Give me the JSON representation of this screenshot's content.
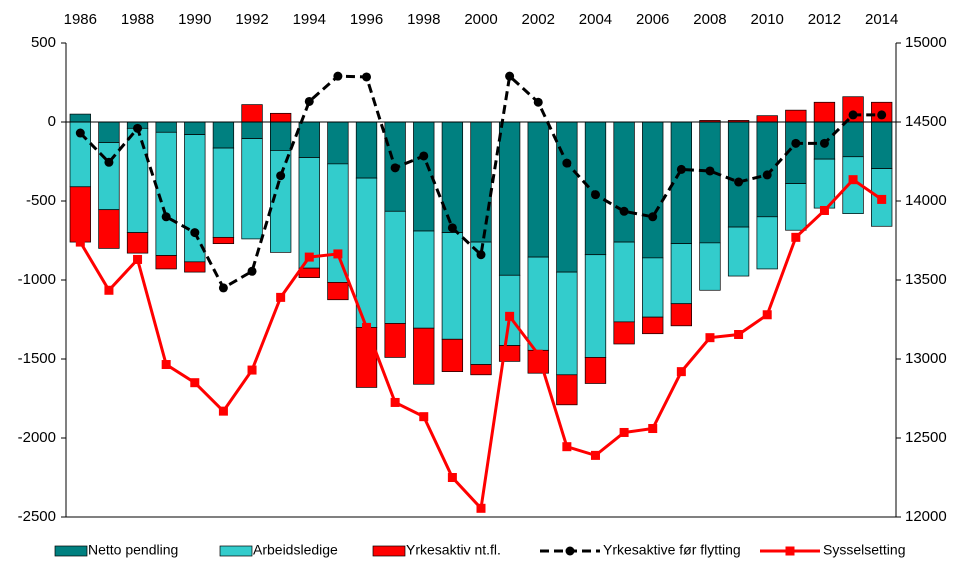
{
  "chart_data": {
    "type": "combo",
    "categories": [
      1986,
      null,
      1988,
      null,
      1990,
      null,
      1992,
      null,
      1994,
      null,
      1996,
      null,
      1998,
      null,
      2000,
      null,
      2002,
      null,
      2004,
      null,
      2006,
      null,
      2008,
      null,
      2010,
      null,
      2012,
      null,
      2014
    ],
    "ylim": [
      -2500,
      500
    ],
    "yticks": [
      -2500,
      -2000,
      -1500,
      -1000,
      -500,
      0,
      500
    ],
    "y2lim": [
      12000,
      15000
    ],
    "y2ticks": [
      12000,
      12500,
      13000,
      13500,
      14000,
      14500,
      15000
    ],
    "legend": "bottom",
    "series": [
      {
        "name": "Netto pendling",
        "kind": "bar",
        "color": "#008080",
        "values": [
          50,
          -130,
          -40,
          -65,
          -80,
          -165,
          -105,
          -180,
          -225,
          -265,
          -355,
          -565,
          -690,
          -700,
          -760,
          -970,
          -855,
          -950,
          -840,
          -760,
          -860,
          -770,
          -765,
          -665,
          -600,
          -390,
          -235,
          -220,
          -295
        ]
      },
      {
        "name": "Arbeidsledige",
        "kind": "bar",
        "color": "#33cccc",
        "values": [
          -410,
          -425,
          -660,
          -780,
          -805,
          -565,
          -635,
          -645,
          -700,
          -750,
          -945,
          -710,
          -615,
          -675,
          -775,
          -445,
          -590,
          -650,
          -650,
          -505,
          -375,
          -380,
          -300,
          -310,
          -330,
          -295,
          -310,
          -360,
          -365
        ]
      },
      {
        "name": "Yrkesaktiv nt.fl.",
        "kind": "bar",
        "color": "#ff0000",
        "values": [
          -350,
          -245,
          -130,
          -85,
          -65,
          -40,
          110,
          55,
          -60,
          -110,
          -380,
          -215,
          -355,
          -205,
          -65,
          -100,
          -145,
          -190,
          -165,
          -140,
          -105,
          -140,
          10,
          10,
          40,
          75,
          125,
          160,
          125
        ]
      },
      {
        "name": "Yrkesaktive før flytting",
        "kind": "line",
        "axis": "y2",
        "color": "#000000",
        "dashed": true,
        "marker": "circle",
        "values": [
          14430,
          14245,
          14460,
          13900,
          13800,
          13450,
          13555,
          14160,
          14630,
          14790,
          14785,
          14210,
          14285,
          13830,
          13660,
          14790,
          14625,
          14240,
          14040,
          13935,
          13900,
          14200,
          14190,
          14120,
          14165,
          14365,
          14365,
          14545,
          14545
        ]
      },
      {
        "name": "Sysselsetting",
        "kind": "line",
        "axis": "y2",
        "color": "#ff0000",
        "dashed": false,
        "marker": "square",
        "values": [
          13740,
          13435,
          13630,
          12965,
          12850,
          12670,
          12930,
          13390,
          13645,
          13665,
          13200,
          12725,
          12635,
          12250,
          12055,
          13270,
          13030,
          12445,
          12390,
          12535,
          12560,
          12920,
          13135,
          13155,
          13280,
          13770,
          13940,
          14135,
          14010
        ]
      }
    ]
  }
}
